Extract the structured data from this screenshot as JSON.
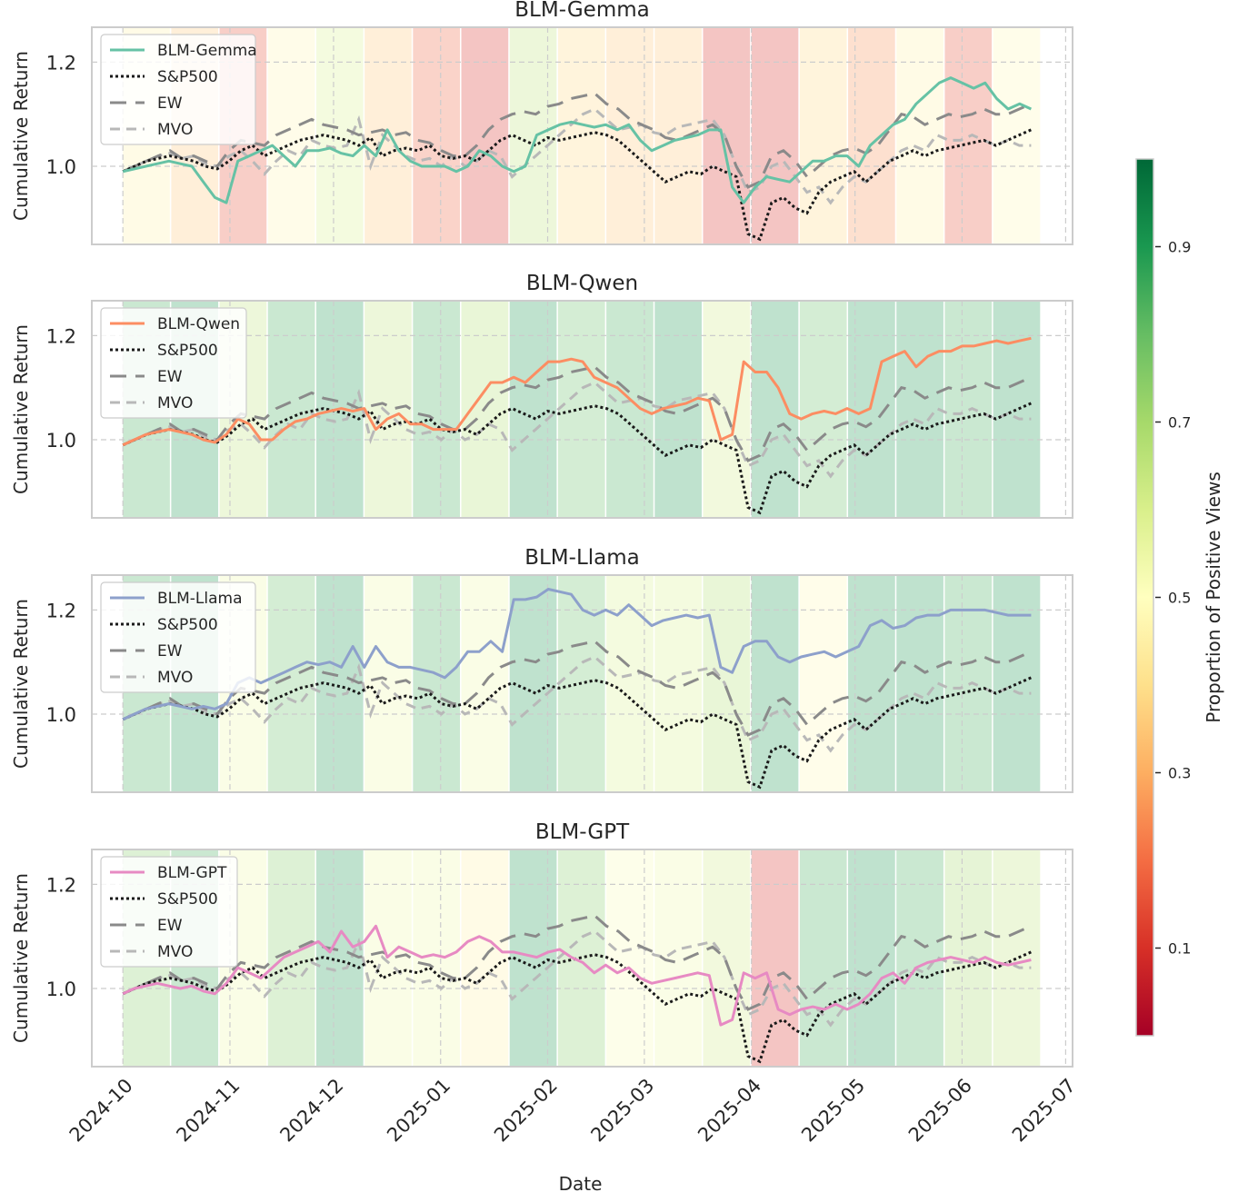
{
  "chart_data": {
    "type": "line",
    "xlabel": "Date",
    "ylabel": "Cumulative Return",
    "x_ticks": [
      "2024-10",
      "2024-11",
      "2024-12",
      "2025-01",
      "2025-02",
      "2025-03",
      "2025-04",
      "2025-05",
      "2025-06",
      "2025-07"
    ],
    "x_range": [
      "2024-09-22",
      "2025-07-03"
    ],
    "y_ticks": [
      "1.0",
      "1.2"
    ],
    "ylim": [
      0.85,
      1.267
    ],
    "grid": true,
    "legend_position": "top-left",
    "colorbar": {
      "label": "Proportion of Positive Views",
      "ticks": [
        "0.1",
        "0.3",
        "0.5",
        "0.7",
        "0.9"
      ],
      "range": [
        0.0,
        1.0
      ],
      "colormap": "RdYlGn"
    },
    "band_periods": [
      "2024-10-01",
      "2024-10-15",
      "2024-10-29",
      "2024-11-12",
      "2024-11-26",
      "2024-12-10",
      "2024-12-24",
      "2025-01-07",
      "2025-01-21",
      "2025-02-04",
      "2025-02-18",
      "2025-03-04",
      "2025-03-18",
      "2025-04-01",
      "2025-04-15",
      "2025-04-29",
      "2025-05-13",
      "2025-05-27",
      "2025-06-10",
      "2025-06-24"
    ],
    "benchmarks": {
      "sp500": {
        "name": "S&P500",
        "values": [
          0.99,
          1.0,
          1.01,
          1.015,
          1.02,
          1.015,
          1.01,
          1.0,
          0.995,
          1.01,
          1.03,
          1.04,
          1.02,
          1.03,
          1.04,
          1.05,
          1.055,
          1.06,
          1.055,
          1.05,
          1.04,
          1.055,
          1.02,
          1.03,
          1.035,
          1.03,
          1.04,
          1.02,
          1.015,
          1.02,
          1.01,
          1.03,
          1.05,
          1.06,
          1.05,
          1.04,
          1.055,
          1.05,
          1.055,
          1.06,
          1.065,
          1.06,
          1.05,
          1.03,
          1.01,
          0.99,
          0.97,
          0.98,
          0.99,
          0.985,
          1.0,
          0.99,
          0.98,
          0.87,
          0.86,
          0.93,
          0.94,
          0.92,
          0.91,
          0.95,
          0.97,
          0.98,
          0.99,
          0.97,
          0.99,
          1.01,
          1.02,
          1.03,
          1.02,
          1.03,
          1.035,
          1.04,
          1.045,
          1.05,
          1.04,
          1.05,
          1.06,
          1.07
        ]
      },
      "ew": {
        "name": "EW",
        "values": [
          0.99,
          1.0,
          1.01,
          1.02,
          1.03,
          1.015,
          1.02,
          1.01,
          1.0,
          1.03,
          1.05,
          1.045,
          1.04,
          1.06,
          1.07,
          1.08,
          1.09,
          1.08,
          1.075,
          1.07,
          1.06,
          1.065,
          1.07,
          1.06,
          1.065,
          1.05,
          1.045,
          1.03,
          1.02,
          1.02,
          1.04,
          1.07,
          1.09,
          1.1,
          1.105,
          1.1,
          1.115,
          1.12,
          1.13,
          1.135,
          1.14,
          1.12,
          1.11,
          1.09,
          1.08,
          1.07,
          1.055,
          1.05,
          1.06,
          1.07,
          1.08,
          1.06,
          1.0,
          0.96,
          0.97,
          1.02,
          1.03,
          1.01,
          0.98,
          1.0,
          1.02,
          1.03,
          1.035,
          1.025,
          1.04,
          1.07,
          1.1,
          1.095,
          1.08,
          1.09,
          1.1,
          1.095,
          1.1,
          1.11,
          1.1,
          1.1,
          1.11,
          1.12
        ]
      },
      "mvo": {
        "name": "MVO",
        "values": [
          0.99,
          1.0,
          1.01,
          1.02,
          1.025,
          1.015,
          1.02,
          1.005,
          1.0,
          1.02,
          1.03,
          1.01,
          0.985,
          1.01,
          1.03,
          1.02,
          1.05,
          1.04,
          1.035,
          1.04,
          1.09,
          1.0,
          1.06,
          1.04,
          1.02,
          1.01,
          1.015,
          1.0,
          1.02,
          1.0,
          1.01,
          1.03,
          1.02,
          0.98,
          1.0,
          1.02,
          1.04,
          1.06,
          1.08,
          1.1,
          1.11,
          1.09,
          1.07,
          1.075,
          1.08,
          1.065,
          1.06,
          1.075,
          1.08,
          1.085,
          1.09,
          1.06,
          1.0,
          0.95,
          0.96,
          1.0,
          1.01,
          0.98,
          0.95,
          0.96,
          0.93,
          0.96,
          0.98,
          0.97,
          0.99,
          1.01,
          1.03,
          1.04,
          1.03,
          1.06,
          1.05,
          1.05,
          1.06,
          1.05,
          1.04,
          1.05,
          1.04,
          1.04
        ]
      }
    },
    "panels": [
      {
        "title": "BLM-Gemma",
        "series_name": "BLM-Gemma",
        "color": "#66c2a5",
        "band_values": [
          0.45,
          0.35,
          0.15,
          0.47,
          0.6,
          0.35,
          0.18,
          0.1,
          0.65,
          0.38,
          0.35,
          0.35,
          0.1,
          0.1,
          0.38,
          0.25,
          0.45,
          0.15,
          0.48
        ],
        "values": [
          0.99,
          0.995,
          1.0,
          1.005,
          1.01,
          1.005,
          1.0,
          0.97,
          0.94,
          0.93,
          1.01,
          1.02,
          1.03,
          1.04,
          1.02,
          1.0,
          1.03,
          1.03,
          1.035,
          1.025,
          1.02,
          1.04,
          1.02,
          1.07,
          1.03,
          1.01,
          1.0,
          1.0,
          1.0,
          0.99,
          1.0,
          1.03,
          1.02,
          1.0,
          0.99,
          1.0,
          1.06,
          1.07,
          1.08,
          1.085,
          1.08,
          1.075,
          1.08,
          1.07,
          1.08,
          1.05,
          1.03,
          1.04,
          1.05,
          1.055,
          1.06,
          1.07,
          1.07,
          0.96,
          0.93,
          0.96,
          0.98,
          0.975,
          0.97,
          0.99,
          1.01,
          1.01,
          1.02,
          1.02,
          1.0,
          1.04,
          1.06,
          1.08,
          1.09,
          1.12,
          1.14,
          1.16,
          1.17,
          1.16,
          1.15,
          1.16,
          1.13,
          1.11,
          1.12,
          1.11
        ]
      },
      {
        "title": "BLM-Qwen",
        "series_name": "BLM-Qwen",
        "color": "#fc8d62",
        "band_values": [
          0.85,
          0.9,
          0.65,
          0.85,
          0.9,
          0.65,
          0.85,
          0.68,
          0.9,
          0.8,
          0.85,
          0.9,
          0.62,
          0.9,
          0.8,
          0.9,
          0.9,
          0.85,
          0.9
        ],
        "values": [
          0.99,
          1.0,
          1.01,
          1.015,
          1.02,
          1.015,
          1.01,
          1.0,
          0.995,
          1.01,
          1.04,
          1.03,
          1.0,
          1.0,
          1.02,
          1.035,
          1.04,
          1.05,
          1.055,
          1.06,
          1.055,
          1.06,
          1.02,
          1.04,
          1.05,
          1.03,
          1.03,
          1.02,
          1.02,
          1.02,
          1.05,
          1.08,
          1.11,
          1.11,
          1.12,
          1.11,
          1.13,
          1.15,
          1.15,
          1.155,
          1.15,
          1.12,
          1.11,
          1.1,
          1.08,
          1.06,
          1.05,
          1.06,
          1.065,
          1.07,
          1.08,
          1.075,
          1.0,
          1.01,
          1.15,
          1.13,
          1.13,
          1.1,
          1.05,
          1.04,
          1.05,
          1.055,
          1.05,
          1.06,
          1.05,
          1.06,
          1.15,
          1.16,
          1.17,
          1.14,
          1.16,
          1.17,
          1.17,
          1.18,
          1.18,
          1.185,
          1.19,
          1.185,
          1.19,
          1.195
        ]
      },
      {
        "title": "BLM-Llama",
        "series_name": "BLM-Llama",
        "color": "#8da0cb",
        "band_values": [
          0.85,
          0.9,
          0.55,
          0.8,
          0.9,
          0.55,
          0.85,
          0.55,
          0.9,
          0.8,
          0.6,
          0.6,
          0.68,
          0.9,
          0.48,
          0.9,
          0.9,
          0.85,
          0.9
        ],
        "values": [
          0.99,
          1.0,
          1.01,
          1.015,
          1.02,
          1.015,
          1.01,
          1.015,
          1.01,
          1.02,
          1.06,
          1.07,
          1.06,
          1.07,
          1.08,
          1.09,
          1.1,
          1.095,
          1.1,
          1.09,
          1.13,
          1.09,
          1.13,
          1.1,
          1.09,
          1.09,
          1.085,
          1.08,
          1.07,
          1.09,
          1.12,
          1.12,
          1.14,
          1.12,
          1.22,
          1.22,
          1.225,
          1.24,
          1.235,
          1.23,
          1.2,
          1.19,
          1.2,
          1.19,
          1.21,
          1.19,
          1.17,
          1.18,
          1.185,
          1.19,
          1.185,
          1.19,
          1.09,
          1.08,
          1.13,
          1.14,
          1.14,
          1.11,
          1.1,
          1.11,
          1.115,
          1.12,
          1.11,
          1.12,
          1.13,
          1.17,
          1.18,
          1.165,
          1.17,
          1.185,
          1.19,
          1.19,
          1.2,
          1.2,
          1.2,
          1.2,
          1.195,
          1.19,
          1.19,
          1.19
        ]
      },
      {
        "title": "BLM-GPT",
        "series_name": "BLM-GPT",
        "color": "#e78ac3",
        "band_values": [
          0.75,
          0.85,
          0.55,
          0.75,
          0.9,
          0.55,
          0.55,
          0.45,
          0.9,
          0.75,
          0.52,
          0.55,
          0.62,
          0.1,
          0.85,
          0.9,
          0.85,
          0.7,
          0.65
        ],
        "values": [
          0.99,
          1.0,
          1.005,
          1.01,
          1.005,
          1.0,
          1.005,
          0.995,
          0.99,
          1.01,
          1.04,
          1.03,
          1.02,
          1.04,
          1.06,
          1.07,
          1.08,
          1.09,
          1.07,
          1.11,
          1.08,
          1.09,
          1.12,
          1.06,
          1.08,
          1.07,
          1.06,
          1.065,
          1.06,
          1.07,
          1.09,
          1.1,
          1.09,
          1.07,
          1.07,
          1.065,
          1.06,
          1.07,
          1.075,
          1.06,
          1.05,
          1.03,
          1.045,
          1.03,
          1.04,
          1.02,
          1.01,
          1.015,
          1.02,
          1.025,
          1.03,
          1.025,
          0.93,
          0.94,
          1.03,
          1.02,
          1.03,
          0.96,
          0.95,
          0.96,
          0.965,
          0.96,
          0.97,
          0.96,
          0.97,
          0.99,
          1.02,
          1.03,
          1.01,
          1.04,
          1.05,
          1.055,
          1.06,
          1.055,
          1.05,
          1.06,
          1.05,
          1.045,
          1.05,
          1.055
        ]
      }
    ]
  }
}
